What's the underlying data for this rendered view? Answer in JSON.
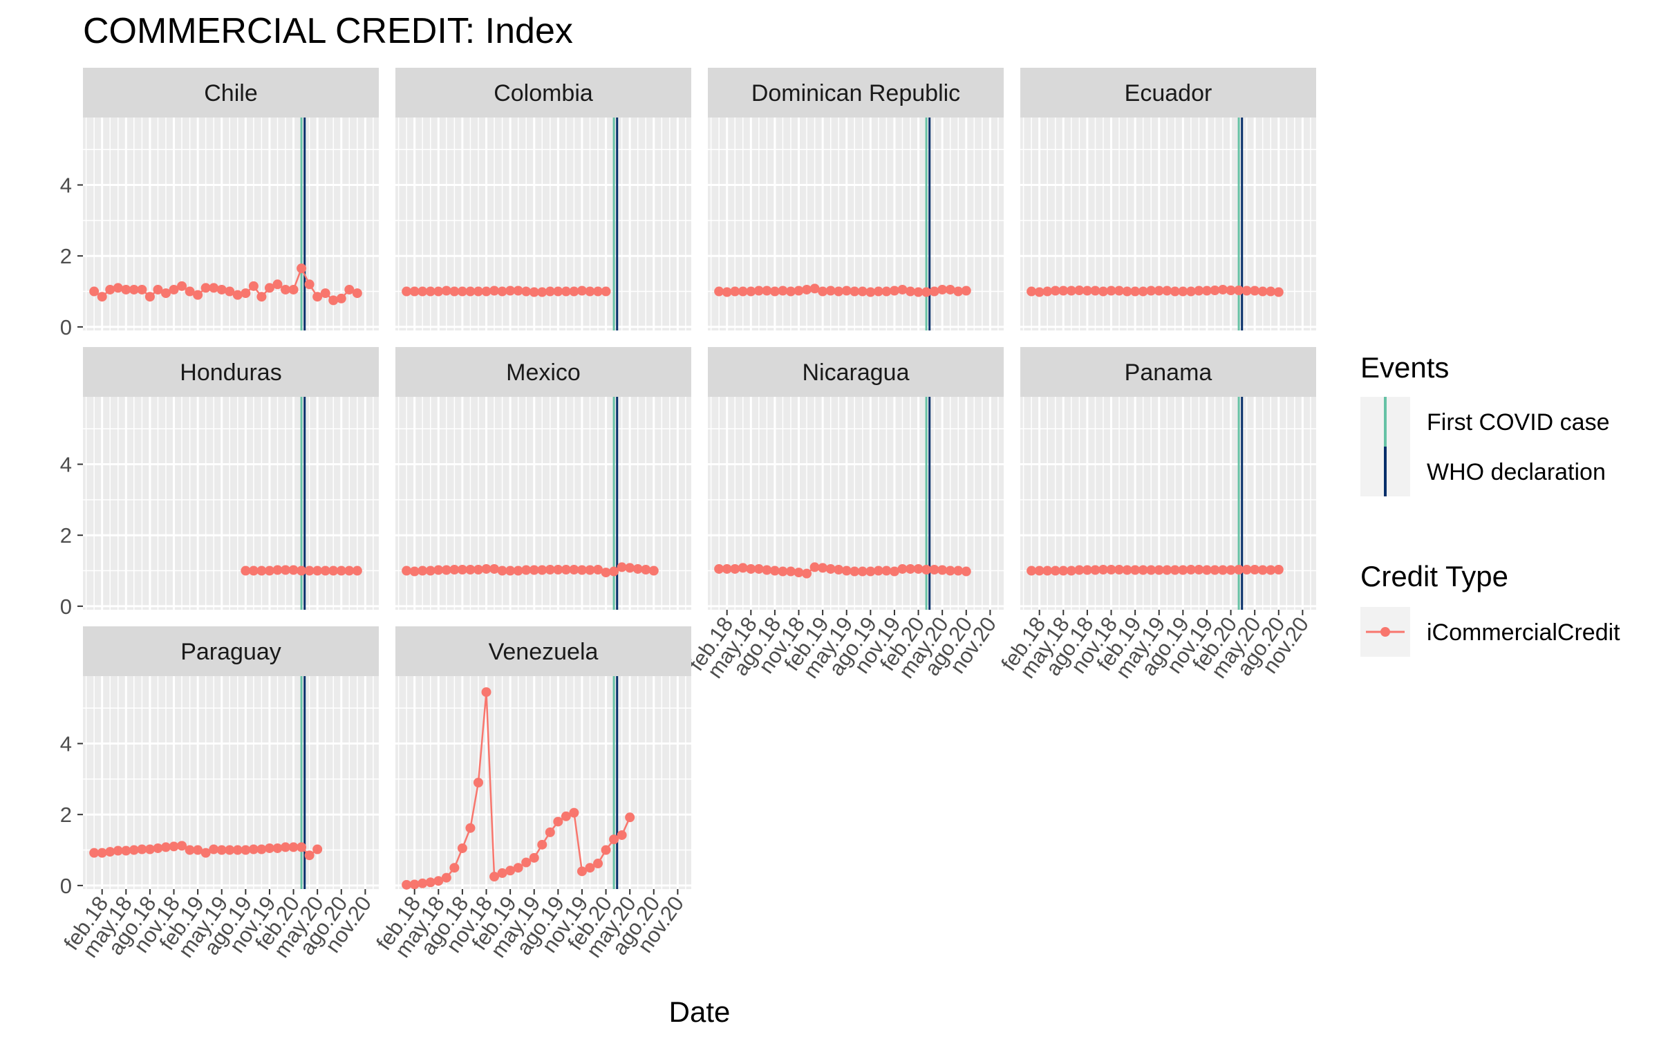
{
  "chart_data": {
    "type": "line",
    "title": "COMMERCIAL CREDIT: Index",
    "xlabel": "Date",
    "ylabel": "",
    "ylim": [
      -0.1,
      5.9
    ],
    "yticks": [
      0,
      2,
      4
    ],
    "x_tick_labels": [
      "feb.18",
      "may.18",
      "ago.18",
      "nov.18",
      "feb.19",
      "may.19",
      "ago.19",
      "nov.19",
      "feb.20",
      "may.20",
      "ago.20",
      "nov.20"
    ],
    "x_tick_months": [
      1,
      4,
      7,
      10,
      13,
      16,
      19,
      22,
      25,
      28,
      31,
      34
    ],
    "x_range_months": [
      -1.4,
      35.7
    ],
    "events": {
      "title": "Events",
      "items": [
        {
          "label": "First COVID case",
          "color": "#66c2a5"
        },
        {
          "label": "WHO declaration",
          "color": "#08306b"
        }
      ]
    },
    "credit_legend": {
      "title": "Credit Type",
      "items": [
        {
          "label": "iCommercialCredit",
          "color": "#f8766d"
        }
      ]
    },
    "series_color": "#f8766d",
    "grid": true,
    "legend_position": "right",
    "facets": [
      {
        "name": "Chile",
        "start_month": 0,
        "covid_month": 26,
        "who_month": 26.4,
        "values": [
          1.0,
          0.85,
          1.05,
          1.1,
          1.05,
          1.05,
          1.05,
          0.85,
          1.05,
          0.95,
          1.05,
          1.15,
          1.0,
          0.9,
          1.1,
          1.1,
          1.05,
          1.0,
          0.9,
          0.95,
          1.15,
          0.85,
          1.1,
          1.2,
          1.05,
          1.05,
          1.65,
          1.2,
          0.85,
          0.95,
          0.75,
          0.8,
          1.05,
          0.95
        ]
      },
      {
        "name": "Colombia",
        "start_month": 0,
        "covid_month": 26,
        "who_month": 26.4,
        "values": [
          1.0,
          1.0,
          1.0,
          1.0,
          1.0,
          1.02,
          1.0,
          1.0,
          1.0,
          1.0,
          1.0,
          1.02,
          1.0,
          1.02,
          1.02,
          1.0,
          0.98,
          0.98,
          1.0,
          1.0,
          1.0,
          1.0,
          1.02,
          1.0,
          1.0,
          1.0
        ]
      },
      {
        "name": "Dominican Republic",
        "start_month": 0,
        "covid_month": 26,
        "who_month": 26.4,
        "values": [
          1.0,
          0.98,
          1.0,
          1.0,
          1.0,
          1.02,
          1.02,
          1.0,
          1.02,
          1.0,
          1.02,
          1.05,
          1.08,
          1.0,
          1.02,
          1.0,
          1.02,
          1.0,
          1.0,
          0.98,
          1.0,
          1.0,
          1.02,
          1.05,
          1.0,
          0.98,
          0.98,
          1.0,
          1.05,
          1.05,
          1.0,
          1.02
        ]
      },
      {
        "name": "Ecuador",
        "start_month": 0,
        "covid_month": 26,
        "who_month": 26.4,
        "values": [
          1.0,
          0.98,
          1.0,
          1.02,
          1.02,
          1.02,
          1.03,
          1.02,
          1.02,
          1.0,
          1.02,
          1.02,
          1.0,
          1.0,
          1.0,
          1.02,
          1.02,
          1.02,
          1.0,
          1.0,
          1.0,
          1.02,
          1.02,
          1.03,
          1.05,
          1.03,
          1.03,
          1.02,
          1.02,
          1.0,
          1.0,
          0.98
        ]
      },
      {
        "name": "Honduras",
        "start_month": 19,
        "covid_month": 26,
        "who_month": 26.4,
        "values": [
          1.0,
          1.0,
          1.0,
          1.0,
          1.02,
          1.02,
          1.02,
          1.0,
          1.0,
          1.0,
          1.0,
          1.0,
          1.0,
          1.0,
          1.0
        ]
      },
      {
        "name": "Mexico",
        "start_month": 0,
        "covid_month": 26,
        "who_month": 26.4,
        "values": [
          1.0,
          0.98,
          1.0,
          1.0,
          1.02,
          1.02,
          1.03,
          1.03,
          1.03,
          1.03,
          1.05,
          1.05,
          1.0,
          1.0,
          1.0,
          1.02,
          1.02,
          1.02,
          1.03,
          1.03,
          1.03,
          1.03,
          1.02,
          1.02,
          1.03,
          0.95,
          0.98,
          1.1,
          1.08,
          1.05,
          1.03,
          1.0
        ]
      },
      {
        "name": "Nicaragua",
        "start_month": 0,
        "covid_month": 26,
        "who_month": 26.4,
        "values": [
          1.05,
          1.05,
          1.05,
          1.08,
          1.05,
          1.05,
          1.02,
          1.0,
          0.98,
          0.98,
          0.95,
          0.92,
          1.1,
          1.08,
          1.05,
          1.03,
          1.0,
          0.98,
          0.98,
          0.98,
          1.0,
          1.0,
          0.98,
          1.05,
          1.05,
          1.05,
          1.03,
          1.03,
          1.02,
          1.0,
          1.0,
          0.98
        ]
      },
      {
        "name": "Panama",
        "start_month": 0,
        "covid_month": 26,
        "who_month": 26.4,
        "values": [
          1.0,
          1.0,
          1.0,
          1.0,
          1.0,
          1.0,
          1.02,
          1.02,
          1.02,
          1.03,
          1.03,
          1.03,
          1.02,
          1.02,
          1.02,
          1.02,
          1.02,
          1.02,
          1.02,
          1.02,
          1.03,
          1.03,
          1.02,
          1.02,
          1.02,
          1.02,
          1.03,
          1.03,
          1.03,
          1.02,
          1.02,
          1.03
        ]
      },
      {
        "name": "Paraguay",
        "start_month": 0,
        "covid_month": 26,
        "who_month": 26.4,
        "values": [
          0.92,
          0.92,
          0.95,
          0.98,
          0.98,
          1.0,
          1.02,
          1.02,
          1.05,
          1.08,
          1.1,
          1.12,
          1.0,
          1.0,
          0.92,
          1.02,
          1.0,
          1.0,
          1.0,
          1.0,
          1.02,
          1.02,
          1.05,
          1.05,
          1.08,
          1.08,
          1.08,
          0.85,
          1.02
        ]
      },
      {
        "name": "Venezuela",
        "start_month": 0,
        "covid_month": 26,
        "who_month": 26.4,
        "values": [
          0.02,
          0.03,
          0.06,
          0.09,
          0.13,
          0.22,
          0.5,
          1.05,
          1.62,
          2.9,
          5.45,
          0.25,
          0.35,
          0.42,
          0.5,
          0.65,
          0.78,
          1.15,
          1.5,
          1.8,
          1.95,
          2.05,
          0.4,
          0.5,
          0.62,
          1.0,
          1.3,
          1.42,
          1.92
        ]
      }
    ]
  }
}
